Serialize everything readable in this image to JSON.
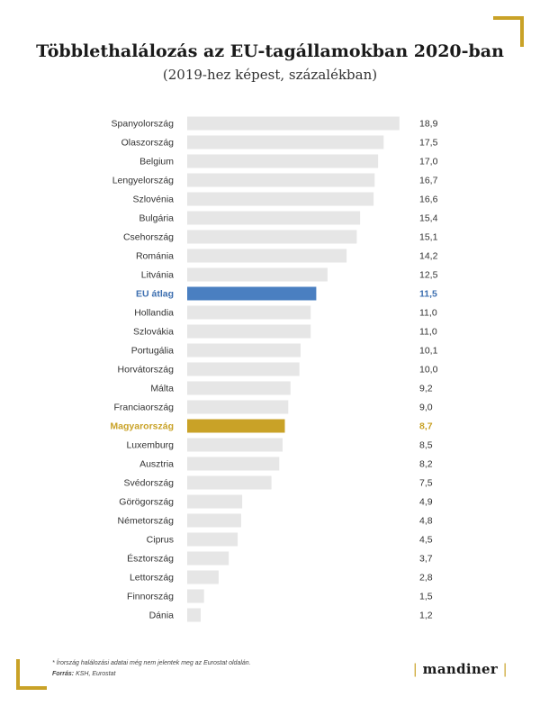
{
  "title": "Többlethalálozás az EU-tagállamokban 2020-ban",
  "subtitle": "(2019-hez képest, százalékban)",
  "footnote": "* Írország halálozási adatai még nem jelentek meg az Eurostat oldalán.",
  "source_label": "Forrás:",
  "source_text": " KSH, Eurostat",
  "logo": {
    "bar_left": "|",
    "text": "mandiner",
    "bar_right": "|"
  },
  "colors": {
    "default_bar": "#e6e6e6",
    "eu_bar": "#4a7fc1",
    "hu_bar": "#c9a227",
    "eu_label": "#3d6fb0",
    "hu_label": "#c9a227",
    "accent": "#c9a227"
  },
  "chart_data": {
    "type": "bar",
    "orientation": "horizontal",
    "title": "Többlethalálozás az EU-tagállamokban 2020-ban",
    "subtitle": "(2019-hez képest, százalékban)",
    "xlim": [
      0,
      19
    ],
    "grid": false,
    "legend": "none",
    "categories": [
      "Spanyolország",
      "Olaszország",
      "Belgium",
      "Lengyelország",
      "Szlovénia",
      "Bulgária",
      "Csehország",
      "Románia",
      "Litvánia",
      "EU átlag",
      "Hollandia",
      "Szlovákia",
      "Portugália",
      "Horvátország",
      "Málta",
      "Franciaország",
      "Magyarország",
      "Luxemburg",
      "Ausztria",
      "Svédország",
      "Görögország",
      "Németország",
      "Ciprus",
      "Észtország",
      "Lettország",
      "Finnország",
      "Dánia"
    ],
    "values": [
      18.9,
      17.5,
      17.0,
      16.7,
      16.6,
      15.4,
      15.1,
      14.2,
      12.5,
      11.5,
      11.0,
      11.0,
      10.1,
      10.0,
      9.2,
      9.0,
      8.7,
      8.5,
      8.2,
      7.5,
      4.9,
      4.8,
      4.5,
      3.7,
      2.8,
      1.5,
      1.2
    ],
    "value_labels": [
      "18,9",
      "17,5",
      "17,0",
      "16,7",
      "16,6",
      "15,4",
      "15,1",
      "14,2",
      "12,5",
      "11,5",
      "11,0",
      "11,0",
      "10,1",
      "10,0",
      "9,2",
      "9,0",
      "8,7",
      "8,5",
      "8,2",
      "7,5",
      "4,9",
      "4,8",
      "4,5",
      "3,7",
      "2,8",
      "1,5",
      "1,2"
    ],
    "highlights": {
      "EU átlag": "eu",
      "Magyarország": "hu"
    }
  }
}
